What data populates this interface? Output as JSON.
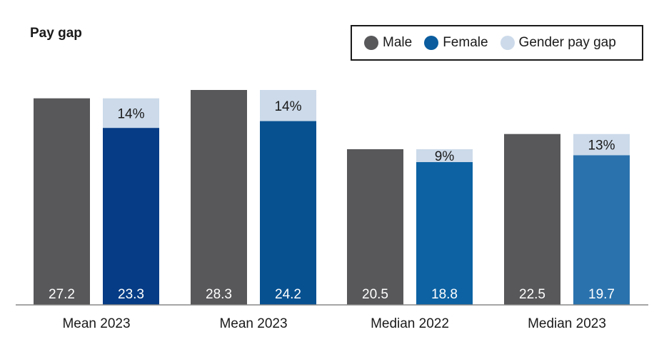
{
  "chart_data": {
    "type": "bar",
    "title": "Pay gap",
    "categories": [
      "Mean 2023",
      "Mean 2023",
      "Median 2022",
      "Median 2023"
    ],
    "series": [
      {
        "name": "Male",
        "values": [
          27.2,
          28.3,
          20.5,
          22.5
        ]
      },
      {
        "name": "Female",
        "values": [
          23.3,
          24.2,
          18.8,
          19.7
        ]
      }
    ],
    "gap": {
      "name": "Gender pay gap",
      "labels": [
        "14%",
        "14%",
        "9%",
        "13%"
      ]
    },
    "value_labels": {
      "male": [
        "27.2",
        "28.3",
        "20.5",
        "22.5"
      ],
      "female": [
        "23.3",
        "24.2",
        "18.8",
        "19.7"
      ]
    },
    "ylim": [
      0,
      28.3
    ],
    "grid": false,
    "legend_position": "top-right"
  },
  "legend": [
    {
      "label": "Male",
      "color": "#58585b"
    },
    {
      "label": "Female",
      "color": "#0a5c9e"
    },
    {
      "label": "Gender pay gap",
      "color": "#ccdaea"
    }
  ],
  "colors": {
    "male": "#58585b",
    "female": [
      "#063c85",
      "#075191",
      "#0c62a3",
      "#2a72ad"
    ],
    "gap": "#ccdaea",
    "axis": "#888888"
  }
}
